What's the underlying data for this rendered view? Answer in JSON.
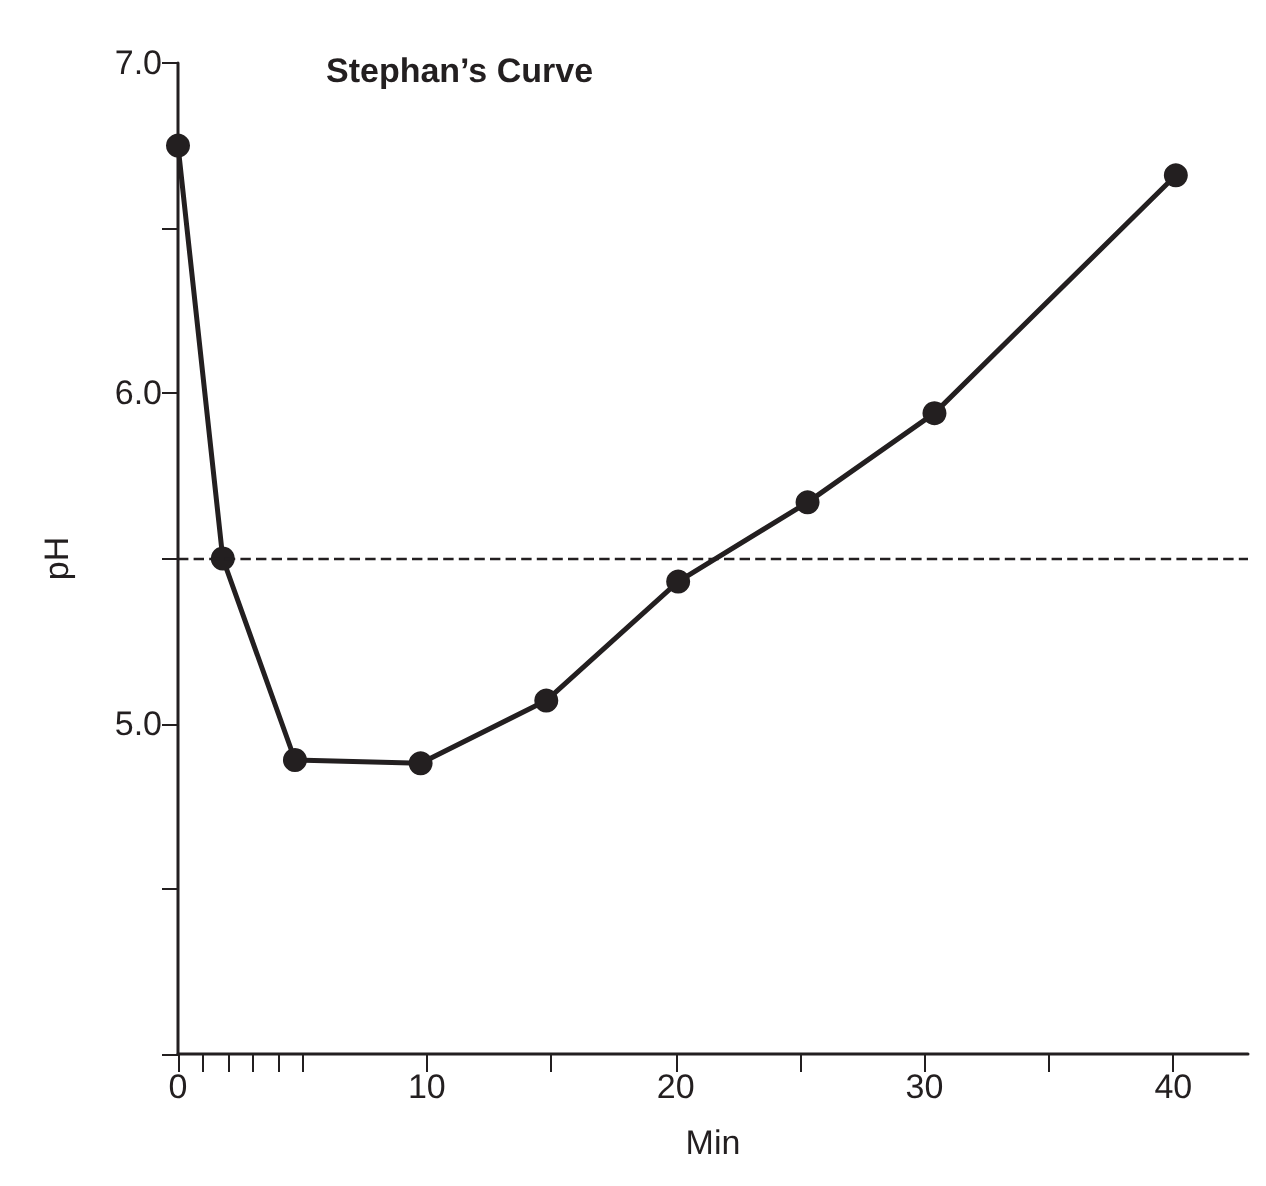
{
  "chart_data": {
    "type": "line",
    "title": "Stephan’s Curve",
    "xlabel": "Min",
    "ylabel": "pH",
    "x": [
      0,
      1.8,
      4.7,
      9.75,
      14.8,
      20.1,
      25.3,
      30.4,
      40.1
    ],
    "series": [
      {
        "color": "#231f20",
        "values": [
          6.75,
          5.5,
          4.89,
          4.88,
          5.07,
          5.43,
          5.67,
          5.94,
          6.66
        ]
      }
    ],
    "xlim": [
      0,
      43
    ],
    "xticks": [
      0,
      {
        "value": 1,
        "label": null
      },
      {
        "value": 2,
        "label": null
      },
      {
        "value": 3,
        "label": null
      },
      {
        "value": 4,
        "label": null
      },
      {
        "value": 5,
        "label": null
      },
      10,
      {
        "value": 15,
        "label": null
      },
      20,
      {
        "value": 25,
        "label": null
      },
      30,
      {
        "value": 35,
        "label": null
      },
      40
    ],
    "ylim": [
      4,
      7
    ],
    "yticks": [
      {
        "value": 4,
        "label": null
      },
      {
        "value": 4.5,
        "label": null
      },
      {
        "value": 5,
        "label": "5.0"
      },
      {
        "value": 5.5,
        "label": null
      },
      {
        "value": 6,
        "label": "6.0"
      },
      {
        "value": 6.5,
        "label": null
      },
      {
        "value": 7,
        "label": "7.0"
      }
    ],
    "ref_lines": [
      {
        "axis": "y",
        "value": 5.5,
        "color": "#231f20",
        "line_style": "dashed"
      }
    ],
    "marker": "circle",
    "line_style": "solid",
    "grid": false
  }
}
